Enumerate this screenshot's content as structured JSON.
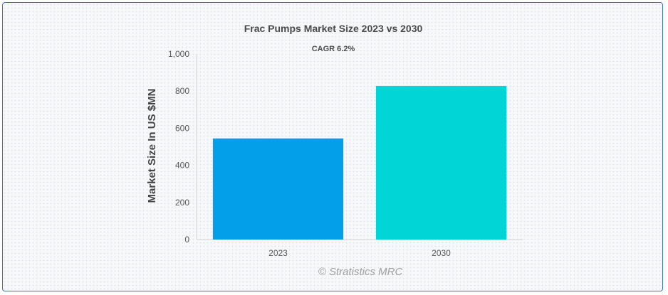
{
  "chart_data": {
    "type": "bar",
    "title": "Frac Pumps Market Size 2023 vs 2030",
    "subtitle": "CAGR 6.2%",
    "xlabel": "",
    "ylabel": "Market Size In US $MN",
    "categories": [
      "2023",
      "2030"
    ],
    "values": [
      545,
      828
    ],
    "colors": [
      "#039fe8",
      "#02d5d6"
    ],
    "ylim": [
      0,
      1000
    ],
    "yticks": [
      0,
      200,
      400,
      600,
      800,
      1000
    ],
    "ytick_labels": [
      "0",
      "200",
      "400",
      "600",
      "800",
      "1,000"
    ],
    "grid": false,
    "legend": "none"
  },
  "credit": "© Stratistics MRC"
}
